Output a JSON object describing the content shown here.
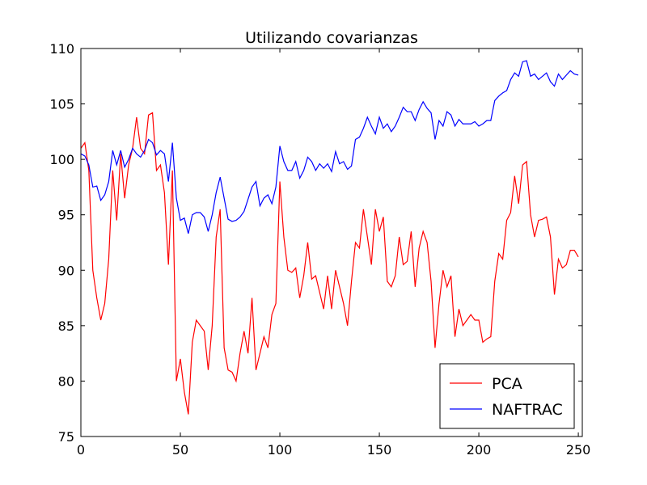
{
  "chart_data": {
    "type": "line",
    "title": "Utilizando covarianzas",
    "x": [
      0,
      2,
      4,
      6,
      8,
      10,
      12,
      14,
      16,
      18,
      20,
      22,
      24,
      26,
      28,
      30,
      32,
      34,
      36,
      38,
      40,
      42,
      44,
      46,
      48,
      50,
      52,
      54,
      56,
      58,
      60,
      62,
      64,
      66,
      68,
      70,
      72,
      74,
      76,
      78,
      80,
      82,
      84,
      86,
      88,
      90,
      92,
      94,
      96,
      98,
      100,
      102,
      104,
      106,
      108,
      110,
      112,
      114,
      116,
      118,
      120,
      122,
      124,
      126,
      128,
      130,
      132,
      134,
      136,
      138,
      140,
      142,
      144,
      146,
      148,
      150,
      152,
      154,
      156,
      158,
      160,
      162,
      164,
      166,
      168,
      170,
      172,
      174,
      176,
      178,
      180,
      182,
      184,
      186,
      188,
      190,
      192,
      194,
      196,
      198,
      200,
      202,
      204,
      206,
      208,
      210,
      212,
      214,
      216,
      218,
      220,
      222,
      224,
      226,
      228,
      230,
      232,
      234,
      236,
      238,
      240,
      242,
      244,
      246,
      248,
      250
    ],
    "series": [
      {
        "name": "PCA",
        "color": "#ff0000",
        "values": [
          101,
          101.5,
          99,
          90,
          87.5,
          85.5,
          87,
          91,
          99,
          94.5,
          100.5,
          96.5,
          99.5,
          101,
          103.8,
          101,
          100.5,
          104,
          104.2,
          99,
          99.5,
          97,
          90.5,
          99,
          80,
          82,
          79,
          77,
          83.5,
          85.5,
          85,
          84.5,
          81,
          85,
          93,
          95.5,
          83,
          81,
          80.8,
          80,
          82.5,
          84.5,
          82.5,
          87.5,
          81,
          82.5,
          84,
          83,
          86,
          87,
          98,
          93,
          90,
          89.8,
          90.2,
          87.5,
          89.5,
          92.5,
          89.2,
          89.5,
          88,
          86.5,
          89.5,
          86.5,
          90,
          88.5,
          87,
          85,
          89,
          92.5,
          92,
          95.5,
          93,
          90.5,
          95.5,
          93.5,
          94.8,
          89,
          88.5,
          89.5,
          93,
          90.5,
          90.8,
          93.5,
          88.5,
          92,
          93.5,
          92.5,
          89,
          83,
          87,
          90,
          88.5,
          89.5,
          84,
          86.5,
          85,
          85.5,
          86,
          85.5,
          85.5,
          83.5,
          83.8,
          84,
          89,
          91.5,
          91,
          94.5,
          95.2,
          98.5,
          96,
          99.5,
          99.8,
          95,
          93,
          94.5,
          94.6,
          94.8,
          93,
          87.8,
          91,
          90.2,
          90.5,
          91.8,
          91.8,
          91.2
        ]
      },
      {
        "name": "NAFTRAC",
        "color": "#0000ff",
        "values": [
          100.5,
          100.3,
          99.5,
          97.5,
          97.6,
          96.3,
          96.8,
          98,
          100.8,
          99.5,
          100.8,
          99.3,
          100,
          101,
          100.5,
          100.2,
          100.8,
          101.8,
          101.5,
          100.4,
          100.8,
          100.5,
          98,
          101.5,
          96.5,
          94.5,
          94.7,
          93.3,
          95,
          95.2,
          95.2,
          94.8,
          93.5,
          95,
          97,
          98.4,
          96.5,
          94.6,
          94.4,
          94.5,
          94.8,
          95.3,
          96.4,
          97.5,
          98,
          95.8,
          96.5,
          96.8,
          96,
          97.5,
          101.2,
          99.8,
          99,
          99,
          99.8,
          98.3,
          99,
          100.2,
          99.8,
          99,
          99.6,
          99.2,
          99.6,
          98.9,
          100.7,
          99.6,
          99.8,
          99.1,
          99.4,
          101.8,
          102,
          102.8,
          103.8,
          103,
          102.3,
          103.8,
          102.8,
          103.2,
          102.5,
          103,
          103.8,
          104.7,
          104.3,
          104.3,
          103.5,
          104.5,
          105.2,
          104.6,
          104.2,
          101.8,
          103.5,
          103,
          104.3,
          104,
          103,
          103.6,
          103.2,
          103.2,
          103.2,
          103.4,
          103,
          103.2,
          103.5,
          103.5,
          105.3,
          105.7,
          106,
          106.2,
          107.2,
          107.8,
          107.5,
          108.8,
          108.9,
          107.5,
          107.7,
          107.2,
          107.5,
          107.8,
          107,
          106.6,
          107.7,
          107.2,
          107.6,
          108,
          107.7,
          107.6
        ]
      }
    ],
    "xlim": [
      0,
      252
    ],
    "ylim": [
      75,
      110
    ],
    "xticks": [
      0,
      50,
      100,
      150,
      200,
      250
    ],
    "yticks": [
      75,
      80,
      85,
      90,
      95,
      100,
      105,
      110
    ],
    "legend": "lower right"
  }
}
